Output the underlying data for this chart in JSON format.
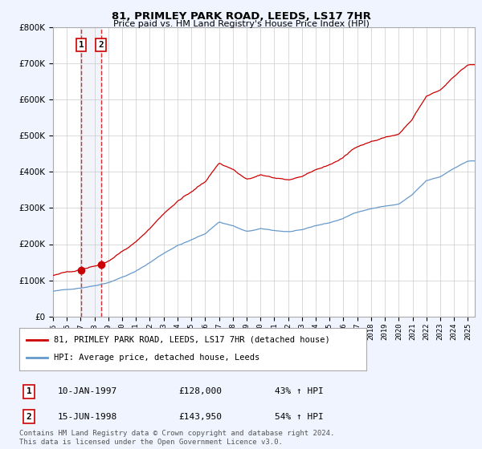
{
  "title": "81, PRIMLEY PARK ROAD, LEEDS, LS17 7HR",
  "subtitle": "Price paid vs. HM Land Registry's House Price Index (HPI)",
  "legend_line1": "81, PRIMLEY PARK ROAD, LEEDS, LS17 7HR (detached house)",
  "legend_line2": "HPI: Average price, detached house, Leeds",
  "annotation1_label": "1",
  "annotation1_date": "10-JAN-1997",
  "annotation1_price": "£128,000",
  "annotation1_hpi": "43% ↑ HPI",
  "annotation1_year": 1997.03,
  "annotation1_value": 128000,
  "annotation2_label": "2",
  "annotation2_date": "15-JUN-1998",
  "annotation2_price": "£143,950",
  "annotation2_hpi": "54% ↑ HPI",
  "annotation2_year": 1998.46,
  "annotation2_value": 143950,
  "sale_color": "#cc0000",
  "hpi_color": "#6699cc",
  "background_color": "#f0f4ff",
  "plot_bg": "#ffffff",
  "ylim_max": 800000,
  "xlim_start": 1995.0,
  "xlim_end": 2025.5,
  "footer": "Contains HM Land Registry data © Crown copyright and database right 2024.\nThis data is licensed under the Open Government Licence v3.0."
}
